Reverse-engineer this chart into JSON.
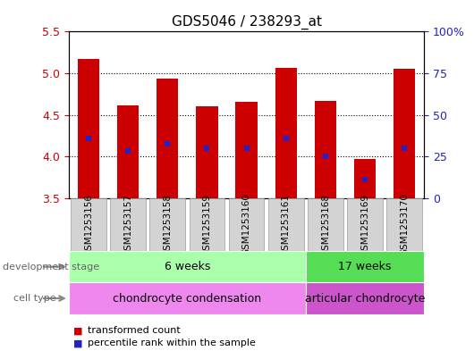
{
  "title": "GDS5046 / 238293_at",
  "samples": [
    "GSM1253156",
    "GSM1253157",
    "GSM1253158",
    "GSM1253159",
    "GSM1253160",
    "GSM1253161",
    "GSM1253168",
    "GSM1253169",
    "GSM1253170"
  ],
  "bar_values": [
    5.17,
    4.62,
    4.94,
    4.6,
    4.66,
    5.07,
    4.67,
    3.97,
    5.05
  ],
  "bar_bottom": 3.5,
  "percentile_values": [
    4.22,
    4.07,
    4.15,
    4.1,
    4.1,
    4.22,
    4.0,
    3.73,
    4.1
  ],
  "ylim": [
    3.5,
    5.5
  ],
  "yticks": [
    3.5,
    4.0,
    4.5,
    5.0,
    5.5
  ],
  "right_yticks": [
    0,
    25,
    50,
    75,
    100
  ],
  "bar_color": "#cc0000",
  "percentile_color": "#2222cc",
  "grid_color": "#000000",
  "title_color": "#000000",
  "left_label_color": "#cc0000",
  "right_label_color": "#2222bb",
  "dev_stage_groups": [
    {
      "label": "6 weeks",
      "start": 0,
      "end": 6,
      "color": "#aaffaa"
    },
    {
      "label": "17 weeks",
      "start": 6,
      "end": 9,
      "color": "#55dd55"
    }
  ],
  "cell_type_groups": [
    {
      "label": "chondrocyte condensation",
      "start": 0,
      "end": 6,
      "color": "#ee88ee"
    },
    {
      "label": "articular chondrocyte",
      "start": 6,
      "end": 9,
      "color": "#cc55cc"
    }
  ],
  "legend_bar_label": "transformed count",
  "legend_percentile_label": "percentile rank within the sample",
  "dev_stage_row_label": "development stage",
  "cell_type_row_label": "cell type",
  "bar_width": 0.55,
  "figure_bg": "#ffffff",
  "sample_box_color": "#d3d3d3",
  "sample_box_edge": "#999999"
}
